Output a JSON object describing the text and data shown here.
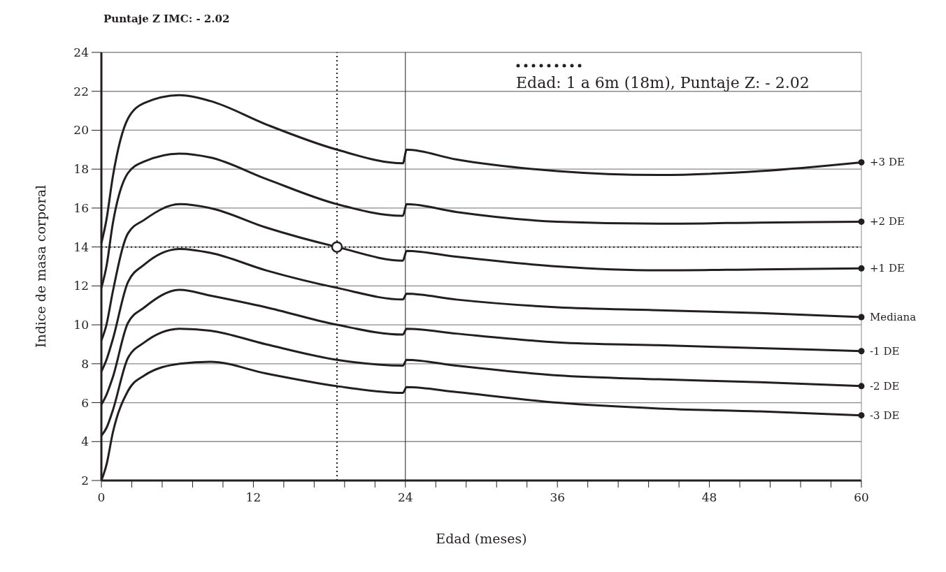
{
  "chart_data": {
    "type": "line",
    "title": "Puntaje Z IMC: - 2.02",
    "xlabel": "Edad (meses)",
    "ylabel": "Indice de masa corporal",
    "x": [
      0,
      0.4,
      0.9,
      2.1,
      3.4,
      6.2,
      8.6,
      13,
      18.6,
      23.8,
      24.1,
      28,
      36,
      44,
      52,
      60
    ],
    "series": [
      {
        "name": "+3 DE",
        "color": "#231f20",
        "values": [
          14.2,
          15.4,
          17.6,
          20.6,
          21.4,
          21.8,
          21.5,
          20.3,
          19.0,
          18.3,
          19.0,
          18.5,
          17.9,
          17.7,
          17.9,
          18.35
        ]
      },
      {
        "name": "+2 DE",
        "color": "#231f20",
        "values": [
          11.9,
          13.0,
          15.2,
          17.8,
          18.4,
          18.8,
          18.6,
          17.5,
          16.2,
          15.6,
          16.2,
          15.8,
          15.3,
          15.2,
          15.25,
          15.3
        ]
      },
      {
        "name": "+1 DE",
        "color": "#231f20",
        "values": [
          9.2,
          10.0,
          11.7,
          14.7,
          15.4,
          16.2,
          16.0,
          15.0,
          14.0,
          13.3,
          13.8,
          13.5,
          13.0,
          12.8,
          12.85,
          12.9
        ]
      },
      {
        "name": "Mediana",
        "color": "#231f20",
        "values": [
          7.6,
          8.2,
          9.25,
          12.2,
          13.1,
          13.9,
          13.7,
          12.8,
          11.9,
          11.3,
          11.6,
          11.3,
          10.9,
          10.75,
          10.6,
          10.4
        ]
      },
      {
        "name": "-1 DE",
        "color": "#231f20",
        "values": [
          5.9,
          6.4,
          7.3,
          10.1,
          10.9,
          11.8,
          11.5,
          10.9,
          10.0,
          9.5,
          9.8,
          9.55,
          9.1,
          8.95,
          8.8,
          8.65
        ]
      },
      {
        "name": "-2 DE",
        "color": "#231f20",
        "values": [
          4.3,
          4.7,
          5.6,
          8.3,
          9.1,
          9.8,
          9.7,
          9.0,
          8.2,
          7.9,
          8.2,
          7.9,
          7.4,
          7.2,
          7.05,
          6.85
        ]
      },
      {
        "name": "-3 DE",
        "color": "#231f20",
        "values": [
          2.0,
          2.8,
          4.45,
          6.6,
          7.4,
          8.0,
          8.1,
          7.5,
          6.85,
          6.5,
          6.8,
          6.55,
          6.0,
          5.7,
          5.55,
          5.35
        ]
      },
      {
        "name": "Edad: 1 a 6m (18m), Puntaje Z: - 2.02",
        "type": "scatter",
        "color": "#231f20",
        "x": [
          18.6
        ],
        "values": [
          14.0
        ]
      }
    ],
    "xlim": [
      0,
      60
    ],
    "xticks": [
      0,
      {
        "value": 2.4,
        "label": null
      },
      {
        "value": 4.8,
        "label": null
      },
      {
        "value": 7.2,
        "label": null
      },
      {
        "value": 9.6,
        "label": null
      },
      12,
      {
        "value": 14.4,
        "label": null
      },
      {
        "value": 16.8,
        "label": null
      },
      {
        "value": 19.2,
        "label": null
      },
      {
        "value": 21.6,
        "label": null
      },
      24,
      {
        "value": 26.4,
        "label": null
      },
      {
        "value": 28.8,
        "label": null
      },
      {
        "value": 31.2,
        "label": null
      },
      {
        "value": 33.6,
        "label": null
      },
      36,
      {
        "value": 38.4,
        "label": null
      },
      {
        "value": 40.8,
        "label": null
      },
      {
        "value": 43.2,
        "label": null
      },
      {
        "value": 45.6,
        "label": null
      },
      48,
      {
        "value": 50.4,
        "label": null
      },
      {
        "value": 52.8,
        "label": null
      },
      {
        "value": 55.2,
        "label": null
      },
      {
        "value": 57.6,
        "label": null
      },
      60
    ],
    "ylim": [
      2,
      24
    ],
    "yticks": [
      2,
      4,
      6,
      8,
      10,
      12,
      14,
      16,
      18,
      20,
      22,
      24
    ],
    "grid": "y",
    "legend": "top right",
    "ref_lines": [
      {
        "axis": "x",
        "value": 24,
        "color": "#231f20",
        "line_style": "solid"
      },
      {
        "axis": "x",
        "value": 18.6,
        "color": "#231f20",
        "line_style": "dotted"
      },
      {
        "axis": "y",
        "value": 14,
        "color": "#231f20",
        "line_style": "dotted"
      }
    ]
  }
}
